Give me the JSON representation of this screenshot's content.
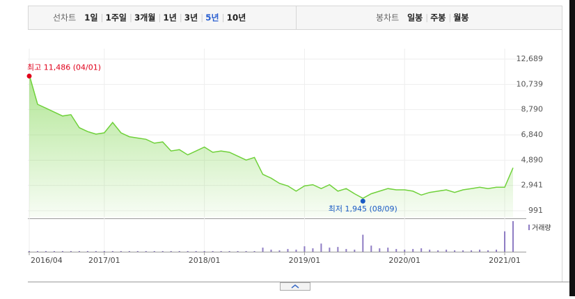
{
  "toolbar": {
    "line_label": "선차트",
    "line_periods": [
      "1일",
      "1주일",
      "3개월",
      "1년",
      "3년",
      "5년",
      "10년"
    ],
    "active_period": 5,
    "candle_label": "봉차트",
    "candle_periods": [
      "일봉",
      "주봉",
      "월봉"
    ]
  },
  "chart_data": {
    "type": "area",
    "color": "#6fd13a",
    "x": [
      "2016/04",
      "2016/05",
      "2016/06",
      "2016/07",
      "2016/08",
      "2016/09",
      "2016/10",
      "2016/11",
      "2016/12",
      "2017/01",
      "2017/02",
      "2017/03",
      "2017/04",
      "2017/05",
      "2017/06",
      "2017/07",
      "2017/08",
      "2017/09",
      "2017/10",
      "2017/11",
      "2017/12",
      "2018/01",
      "2018/02",
      "2018/03",
      "2018/04",
      "2018/05",
      "2018/06",
      "2018/07",
      "2018/08",
      "2018/09",
      "2018/10",
      "2018/11",
      "2018/12",
      "2019/01",
      "2019/02",
      "2019/03",
      "2019/04",
      "2019/05",
      "2019/06",
      "2019/07",
      "2019/08",
      "2019/09",
      "2019/10",
      "2019/11",
      "2019/12",
      "2020/01",
      "2020/02",
      "2020/03",
      "2020/04",
      "2020/05",
      "2020/06",
      "2020/07",
      "2020/08",
      "2020/09",
      "2020/10",
      "2020/11",
      "2020/12",
      "2021/01",
      "2021/02"
    ],
    "values": [
      11486,
      9200,
      8900,
      8600,
      8300,
      8400,
      7400,
      7100,
      6900,
      7000,
      7800,
      7000,
      6700,
      6600,
      6500,
      6200,
      6300,
      5600,
      5700,
      5300,
      5600,
      5900,
      5500,
      5600,
      5500,
      5200,
      4900,
      5100,
      3800,
      3500,
      3100,
      2900,
      2500,
      2900,
      3000,
      2700,
      3000,
      2500,
      2700,
      2300,
      1945,
      2300,
      2500,
      2700,
      2600,
      2600,
      2500,
      2200,
      2400,
      2500,
      2600,
      2400,
      2600,
      2700,
      2800,
      2700,
      2800,
      2800,
      4300
    ],
    "ylim": [
      991,
      12689
    ],
    "yticks": [
      {
        "value": 991,
        "label": "991"
      },
      {
        "value": 2941,
        "label": "2,941"
      },
      {
        "value": 4890,
        "label": "4,890"
      },
      {
        "value": 6840,
        "label": "6,840"
      },
      {
        "value": 8790,
        "label": "8,790"
      },
      {
        "value": 10739,
        "label": "10,739"
      },
      {
        "value": 12689,
        "label": "12,689"
      }
    ],
    "xticks": [
      "2016/04",
      "2017/01",
      "2018/01",
      "2019/01",
      "2020/01",
      "2021/01"
    ],
    "high": {
      "text": "최고 11,486 (04/01)",
      "value": 11486,
      "x": "2016/04",
      "color": "#e0001b"
    },
    "low": {
      "text": "최저 1,945 (08/09)",
      "value": 1945,
      "x": "2019/08",
      "color": "#1a5bc4"
    },
    "volume": {
      "name": "거래량",
      "color": "#8e7cc3",
      "values": [
        1,
        1,
        1,
        1,
        1,
        1,
        1,
        1,
        1,
        1,
        1,
        1,
        1,
        1,
        1,
        1,
        1,
        1,
        1,
        1,
        1,
        1,
        1,
        1,
        1,
        1,
        1,
        1,
        6,
        3,
        2,
        4,
        3,
        8,
        5,
        12,
        6,
        7,
        4,
        3,
        25,
        9,
        5,
        6,
        4,
        3,
        4,
        5,
        3,
        2,
        3,
        2,
        2,
        2,
        3,
        2,
        3,
        30,
        45
      ]
    }
  }
}
